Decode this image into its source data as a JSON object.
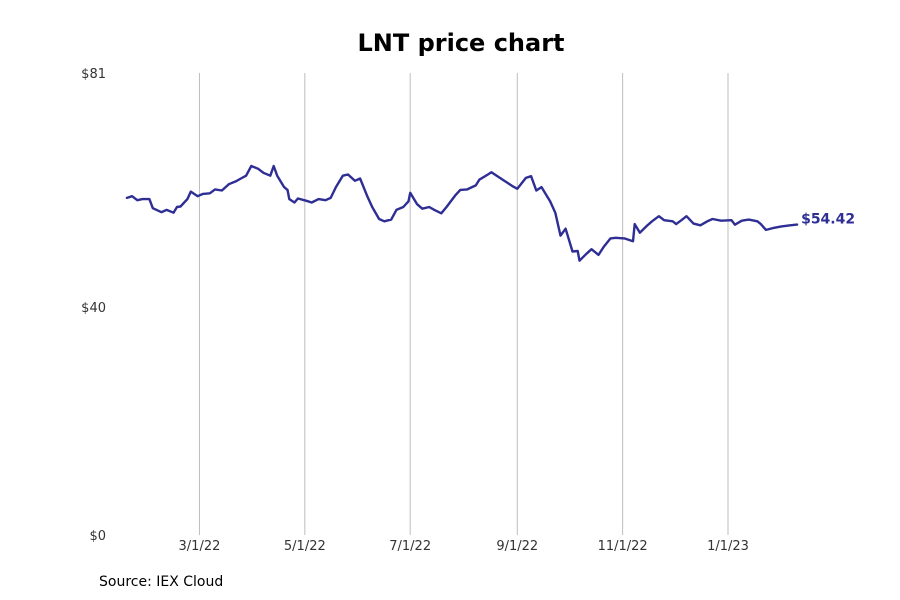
{
  "chart_data": {
    "type": "line",
    "title": "LNT price chart",
    "xlabel": "",
    "ylabel": "",
    "x_range": [
      "2022-01-18",
      "2023-02-10"
    ],
    "xlim": [
      "2022-01-14",
      "2023-03-30"
    ],
    "ylim": [
      0,
      81
    ],
    "y_ticks": [
      {
        "value": 0,
        "label": "$0"
      },
      {
        "value": 40,
        "label": "$40"
      },
      {
        "value": 81,
        "label": "$81"
      }
    ],
    "x_ticks": [
      {
        "date": "2022-03-01",
        "label": "3/1/22"
      },
      {
        "date": "2022-05-01",
        "label": "5/1/22"
      },
      {
        "date": "2022-07-01",
        "label": "7/1/22"
      },
      {
        "date": "2022-09-01",
        "label": "9/1/22"
      },
      {
        "date": "2022-11-01",
        "label": "11/1/22"
      },
      {
        "date": "2023-01-01",
        "label": "1/1/23"
      }
    ],
    "grid": {
      "x": true,
      "y": false
    },
    "line_color": "#2e2e94",
    "last_value_label": "$54.42",
    "series": [
      {
        "values": [
          [
            "2022-01-18",
            59.1
          ],
          [
            "2022-01-21",
            59.4
          ],
          [
            "2022-01-24",
            58.7
          ],
          [
            "2022-01-27",
            58.9
          ],
          [
            "2022-01-31",
            58.9
          ],
          [
            "2022-02-02",
            57.3
          ],
          [
            "2022-02-07",
            56.6
          ],
          [
            "2022-02-10",
            57.0
          ],
          [
            "2022-02-14",
            56.5
          ],
          [
            "2022-02-16",
            57.5
          ],
          [
            "2022-02-18",
            57.6
          ],
          [
            "2022-02-22",
            58.9
          ],
          [
            "2022-02-24",
            60.2
          ],
          [
            "2022-02-28",
            59.4
          ],
          [
            "2022-03-03",
            59.8
          ],
          [
            "2022-03-07",
            59.9
          ],
          [
            "2022-03-10",
            60.6
          ],
          [
            "2022-03-14",
            60.4
          ],
          [
            "2022-03-18",
            61.5
          ],
          [
            "2022-03-22",
            62.0
          ],
          [
            "2022-03-25",
            62.5
          ],
          [
            "2022-03-28",
            63.0
          ],
          [
            "2022-03-31",
            64.7
          ],
          [
            "2022-04-04",
            64.2
          ],
          [
            "2022-04-07",
            63.5
          ],
          [
            "2022-04-11",
            63.0
          ],
          [
            "2022-04-13",
            64.7
          ],
          [
            "2022-04-15",
            63.0
          ],
          [
            "2022-04-19",
            61.0
          ],
          [
            "2022-04-21",
            60.5
          ],
          [
            "2022-04-22",
            58.9
          ],
          [
            "2022-04-25",
            58.3
          ],
          [
            "2022-04-27",
            59.0
          ],
          [
            "2022-05-02",
            58.6
          ],
          [
            "2022-05-05",
            58.3
          ],
          [
            "2022-05-09",
            58.9
          ],
          [
            "2022-05-13",
            58.7
          ],
          [
            "2022-05-16",
            59.1
          ],
          [
            "2022-05-19",
            61.0
          ],
          [
            "2022-05-23",
            63.0
          ],
          [
            "2022-05-26",
            63.2
          ],
          [
            "2022-05-30",
            62.1
          ],
          [
            "2022-06-02",
            62.5
          ],
          [
            "2022-06-06",
            59.5
          ],
          [
            "2022-06-09",
            57.5
          ],
          [
            "2022-06-13",
            55.4
          ],
          [
            "2022-06-16",
            55.0
          ],
          [
            "2022-06-20",
            55.3
          ],
          [
            "2022-06-23",
            57.0
          ],
          [
            "2022-06-27",
            57.5
          ],
          [
            "2022-06-30",
            58.5
          ],
          [
            "2022-07-01",
            60.0
          ],
          [
            "2022-07-05",
            58.0
          ],
          [
            "2022-07-08",
            57.2
          ],
          [
            "2022-07-12",
            57.5
          ],
          [
            "2022-07-15",
            57.0
          ],
          [
            "2022-07-19",
            56.4
          ],
          [
            "2022-07-22",
            57.5
          ],
          [
            "2022-07-27",
            59.5
          ],
          [
            "2022-07-30",
            60.5
          ],
          [
            "2022-08-03",
            60.6
          ],
          [
            "2022-08-08",
            61.3
          ],
          [
            "2022-08-10",
            62.3
          ],
          [
            "2022-08-15",
            63.2
          ],
          [
            "2022-08-17",
            63.6
          ],
          [
            "2022-08-19",
            63.2
          ],
          [
            "2022-08-24",
            62.2
          ],
          [
            "2022-08-29",
            61.2
          ],
          [
            "2022-09-01",
            60.7
          ],
          [
            "2022-09-06",
            62.6
          ],
          [
            "2022-09-09",
            62.9
          ],
          [
            "2022-09-12",
            60.4
          ],
          [
            "2022-09-15",
            61.0
          ],
          [
            "2022-09-20",
            58.5
          ],
          [
            "2022-09-23",
            56.5
          ],
          [
            "2022-09-26",
            52.5
          ],
          [
            "2022-09-29",
            53.7
          ],
          [
            "2022-10-03",
            49.7
          ],
          [
            "2022-10-06",
            49.8
          ],
          [
            "2022-10-07",
            48.1
          ],
          [
            "2022-10-11",
            49.3
          ],
          [
            "2022-10-14",
            50.1
          ],
          [
            "2022-10-18",
            49.1
          ],
          [
            "2022-10-21",
            50.5
          ],
          [
            "2022-10-25",
            52.0
          ],
          [
            "2022-10-28",
            52.1
          ],
          [
            "2022-11-02",
            52.0
          ],
          [
            "2022-11-07",
            51.5
          ],
          [
            "2022-11-08",
            54.5
          ],
          [
            "2022-11-11",
            53.0
          ],
          [
            "2022-11-15",
            54.2
          ],
          [
            "2022-11-18",
            55.0
          ],
          [
            "2022-11-22",
            55.9
          ],
          [
            "2022-11-25",
            55.2
          ],
          [
            "2022-11-30",
            55.0
          ],
          [
            "2022-12-02",
            54.5
          ],
          [
            "2022-12-05",
            55.2
          ],
          [
            "2022-12-08",
            55.9
          ],
          [
            "2022-12-12",
            54.6
          ],
          [
            "2022-12-16",
            54.3
          ],
          [
            "2022-12-20",
            55.0
          ],
          [
            "2022-12-23",
            55.4
          ],
          [
            "2022-12-28",
            55.1
          ],
          [
            "2023-01-03",
            55.2
          ],
          [
            "2023-01-05",
            54.4
          ],
          [
            "2023-01-09",
            55.1
          ],
          [
            "2023-01-13",
            55.3
          ],
          [
            "2023-01-18",
            55.0
          ],
          [
            "2023-01-20",
            54.5
          ],
          [
            "2023-01-23",
            53.5
          ],
          [
            "2023-01-27",
            53.8
          ],
          [
            "2023-02-01",
            54.1
          ],
          [
            "2023-02-06",
            54.3
          ],
          [
            "2023-02-10",
            54.42
          ]
        ]
      }
    ]
  },
  "footer": {
    "source": "Source: IEX Cloud"
  }
}
